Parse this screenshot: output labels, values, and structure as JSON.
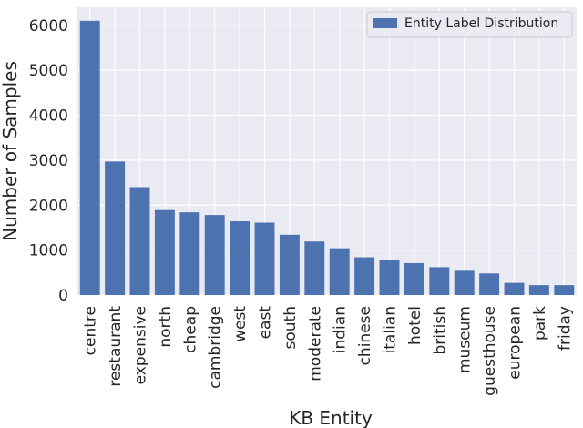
{
  "chart_data": {
    "type": "bar",
    "categories": [
      "centre",
      "restaurant",
      "expensive",
      "north",
      "cheap",
      "cambridge",
      "west",
      "east",
      "south",
      "moderate",
      "indian",
      "chinese",
      "italian",
      "hotel",
      "british",
      "museum",
      "guesthouse",
      "european",
      "park",
      "friday"
    ],
    "series": [
      {
        "name": "Entity Label Distribution",
        "values": [
          6100,
          2970,
          2400,
          1890,
          1840,
          1780,
          1640,
          1610,
          1340,
          1190,
          1040,
          840,
          770,
          710,
          620,
          540,
          480,
          270,
          220,
          220
        ]
      }
    ],
    "xlabel": "KB Entity",
    "ylabel": "Number of Samples",
    "ylim": [
      0,
      6400
    ],
    "yticks": [
      0,
      1000,
      2000,
      3000,
      4000,
      5000,
      6000
    ],
    "grid": true,
    "legend_position": "top-right",
    "colors": {
      "bar": "#4c72b0",
      "grid": "#ffffff",
      "background": "#eaeaf2",
      "text": "#262626"
    }
  }
}
